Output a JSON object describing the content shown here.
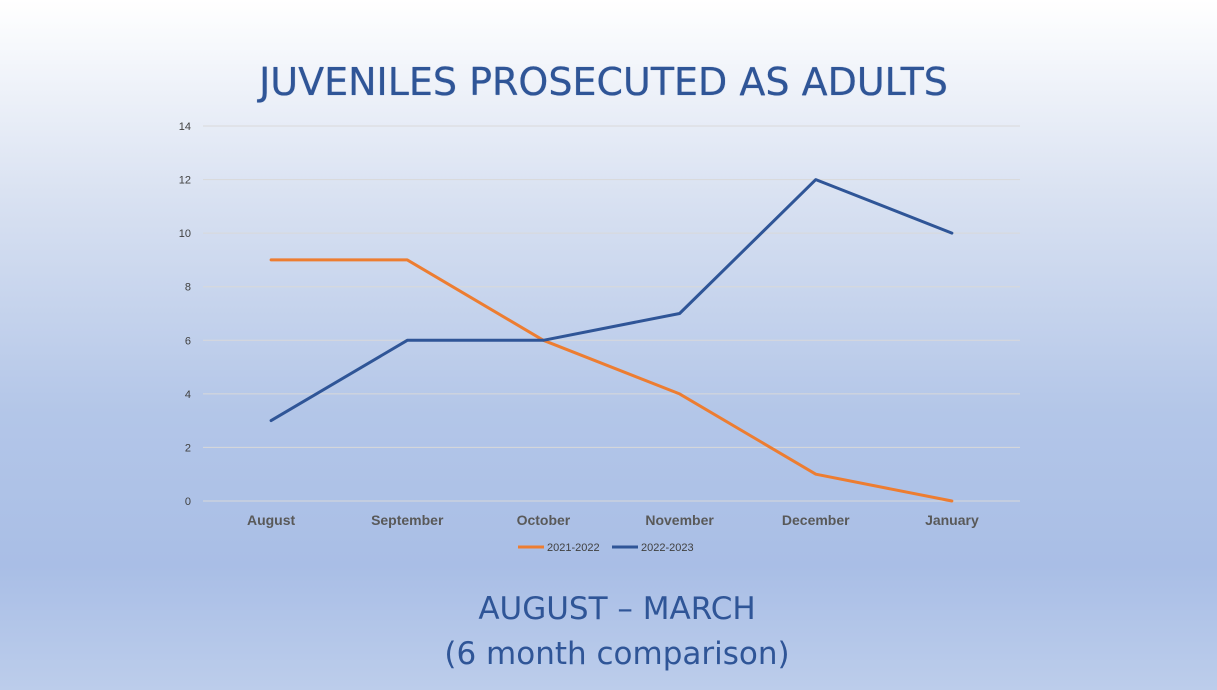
{
  "slide": {
    "title": "JUVENILES PROSECUTED AS ADULTS",
    "subtitle_line1": "AUGUST – MARCH",
    "subtitle_line2": "(6 month comparison)"
  },
  "chart_data": {
    "type": "line",
    "categories": [
      "August",
      "September",
      "October",
      "November",
      "December",
      "January"
    ],
    "series": [
      {
        "name": "2021-2022",
        "color": "#ed7d31",
        "values": [
          9,
          9,
          6,
          4,
          1,
          0
        ]
      },
      {
        "name": "2022-2023",
        "color": "#2f5597",
        "values": [
          3,
          6,
          6,
          7,
          12,
          10
        ]
      }
    ],
    "ylim": [
      0,
      14
    ],
    "yticks": [
      0,
      2,
      4,
      6,
      8,
      10,
      12,
      14
    ],
    "grid": true,
    "legend": "bottom"
  }
}
